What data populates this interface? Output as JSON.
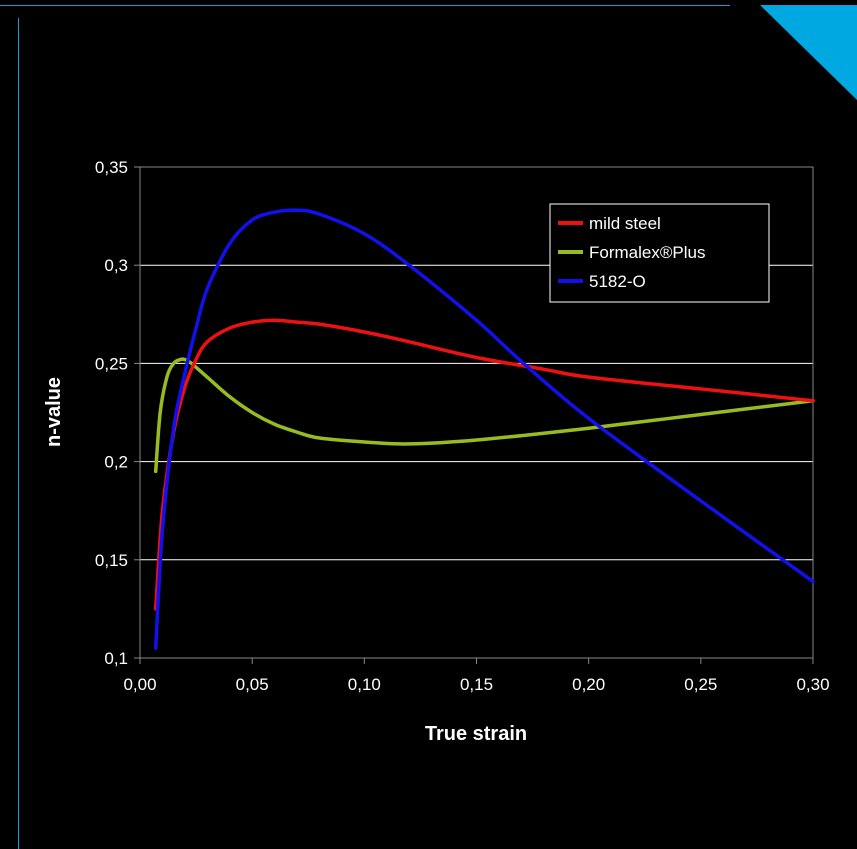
{
  "colors": {
    "background": "#000000",
    "accent": "#00a8e1",
    "grid": "#ffffff"
  },
  "chart_data": {
    "type": "line",
    "title": "",
    "xlabel": "True strain",
    "ylabel": "n-value",
    "xlim": [
      0,
      0.3
    ],
    "ylim": [
      0.1,
      0.35
    ],
    "grid": true,
    "legend_position": "top-right",
    "x_ticks": [
      "0,00",
      "0,05",
      "0,10",
      "0,15",
      "0,20",
      "0,25",
      "0,30"
    ],
    "y_ticks": [
      "0,1",
      "0,15",
      "0,2",
      "0,25",
      "0,3",
      "0,35"
    ],
    "series": [
      {
        "name": "mild steel",
        "color": "#ee1111",
        "x": [
          0.007,
          0.01,
          0.015,
          0.02,
          0.025,
          0.03,
          0.04,
          0.05,
          0.06,
          0.07,
          0.08,
          0.1,
          0.12,
          0.15,
          0.18,
          0.2,
          0.25,
          0.3
        ],
        "y": [
          0.125,
          0.175,
          0.215,
          0.238,
          0.252,
          0.261,
          0.268,
          0.271,
          0.272,
          0.271,
          0.27,
          0.266,
          0.261,
          0.253,
          0.247,
          0.243,
          0.237,
          0.231
        ]
      },
      {
        "name": "Formalex®Plus",
        "color": "#99bb22",
        "x": [
          0.007,
          0.009,
          0.012,
          0.015,
          0.018,
          0.02,
          0.023,
          0.025,
          0.03,
          0.04,
          0.05,
          0.06,
          0.07,
          0.08,
          0.1,
          0.12,
          0.15,
          0.2,
          0.25,
          0.3
        ],
        "y": [
          0.195,
          0.225,
          0.243,
          0.25,
          0.252,
          0.252,
          0.25,
          0.248,
          0.243,
          0.233,
          0.225,
          0.219,
          0.215,
          0.212,
          0.21,
          0.209,
          0.211,
          0.217,
          0.224,
          0.231
        ]
      },
      {
        "name": "5182-O",
        "color": "#1111ee",
        "x": [
          0.007,
          0.01,
          0.015,
          0.02,
          0.025,
          0.03,
          0.04,
          0.05,
          0.06,
          0.07,
          0.08,
          0.1,
          0.12,
          0.15,
          0.17,
          0.2,
          0.25,
          0.3
        ],
        "y": [
          0.105,
          0.165,
          0.217,
          0.245,
          0.268,
          0.288,
          0.311,
          0.323,
          0.327,
          0.328,
          0.326,
          0.316,
          0.3,
          0.272,
          0.251,
          0.222,
          0.18,
          0.139
        ]
      }
    ]
  }
}
